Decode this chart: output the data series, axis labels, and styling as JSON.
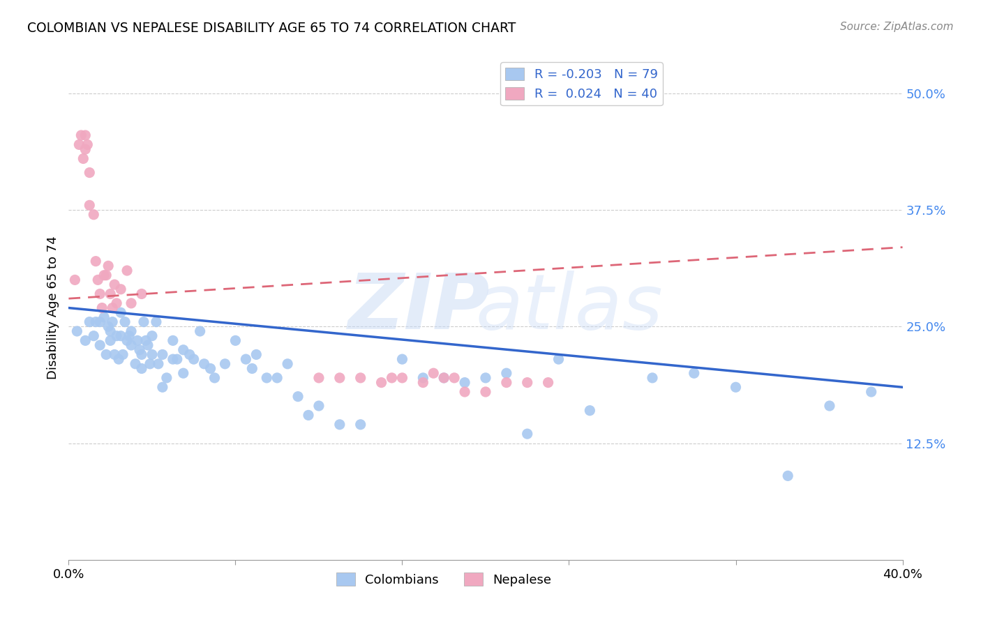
{
  "title": "COLOMBIAN VS NEPALESE DISABILITY AGE 65 TO 74 CORRELATION CHART",
  "source": "Source: ZipAtlas.com",
  "ylabel": "Disability Age 65 to 74",
  "xlim": [
    0.0,
    0.4
  ],
  "ylim": [
    0.0,
    0.54
  ],
  "yticks": [
    0.125,
    0.25,
    0.375,
    0.5
  ],
  "ytick_labels": [
    "12.5%",
    "25.0%",
    "37.5%",
    "50.0%"
  ],
  "xticks": [
    0.0,
    0.08,
    0.16,
    0.24,
    0.32,
    0.4
  ],
  "xtick_labels": [
    "0.0%",
    "",
    "",
    "",
    "",
    "40.0%"
  ],
  "colombian_color": "#a8c8f0",
  "nepalese_color": "#f0a8c0",
  "colombian_line_color": "#3366cc",
  "nepalese_line_color": "#dd6677",
  "R_colombian": -0.203,
  "N_colombian": 79,
  "R_nepalese": 0.024,
  "N_nepalese": 40,
  "col_trend_x": [
    0.0,
    0.4
  ],
  "col_trend_y": [
    0.27,
    0.185
  ],
  "nep_trend_x": [
    0.0,
    0.4
  ],
  "nep_trend_y": [
    0.28,
    0.335
  ],
  "colombian_x": [
    0.004,
    0.008,
    0.01,
    0.012,
    0.013,
    0.015,
    0.015,
    0.017,
    0.018,
    0.019,
    0.02,
    0.02,
    0.021,
    0.022,
    0.023,
    0.024,
    0.025,
    0.025,
    0.026,
    0.027,
    0.028,
    0.029,
    0.03,
    0.03,
    0.032,
    0.033,
    0.034,
    0.035,
    0.035,
    0.036,
    0.037,
    0.038,
    0.039,
    0.04,
    0.04,
    0.042,
    0.043,
    0.045,
    0.045,
    0.047,
    0.05,
    0.05,
    0.052,
    0.055,
    0.055,
    0.058,
    0.06,
    0.063,
    0.065,
    0.068,
    0.07,
    0.075,
    0.08,
    0.085,
    0.088,
    0.09,
    0.095,
    0.1,
    0.105,
    0.11,
    0.115,
    0.12,
    0.13,
    0.14,
    0.16,
    0.17,
    0.18,
    0.19,
    0.2,
    0.21,
    0.22,
    0.235,
    0.25,
    0.28,
    0.3,
    0.32,
    0.345,
    0.365,
    0.385
  ],
  "colombian_y": [
    0.245,
    0.235,
    0.255,
    0.24,
    0.255,
    0.255,
    0.23,
    0.26,
    0.22,
    0.25,
    0.235,
    0.245,
    0.255,
    0.22,
    0.24,
    0.215,
    0.24,
    0.265,
    0.22,
    0.255,
    0.235,
    0.24,
    0.23,
    0.245,
    0.21,
    0.235,
    0.225,
    0.205,
    0.22,
    0.255,
    0.235,
    0.23,
    0.21,
    0.22,
    0.24,
    0.255,
    0.21,
    0.185,
    0.22,
    0.195,
    0.215,
    0.235,
    0.215,
    0.2,
    0.225,
    0.22,
    0.215,
    0.245,
    0.21,
    0.205,
    0.195,
    0.21,
    0.235,
    0.215,
    0.205,
    0.22,
    0.195,
    0.195,
    0.21,
    0.175,
    0.155,
    0.165,
    0.145,
    0.145,
    0.215,
    0.195,
    0.195,
    0.19,
    0.195,
    0.2,
    0.135,
    0.215,
    0.16,
    0.195,
    0.2,
    0.185,
    0.09,
    0.165,
    0.18
  ],
  "nepalese_x": [
    0.003,
    0.005,
    0.006,
    0.007,
    0.008,
    0.008,
    0.009,
    0.01,
    0.01,
    0.012,
    0.013,
    0.014,
    0.015,
    0.016,
    0.017,
    0.018,
    0.019,
    0.02,
    0.021,
    0.022,
    0.023,
    0.025,
    0.028,
    0.03,
    0.035,
    0.12,
    0.13,
    0.14,
    0.15,
    0.155,
    0.16,
    0.17,
    0.175,
    0.18,
    0.185,
    0.19,
    0.2,
    0.21,
    0.22,
    0.23
  ],
  "nepalese_y": [
    0.3,
    0.445,
    0.455,
    0.43,
    0.44,
    0.455,
    0.445,
    0.415,
    0.38,
    0.37,
    0.32,
    0.3,
    0.285,
    0.27,
    0.305,
    0.305,
    0.315,
    0.285,
    0.27,
    0.295,
    0.275,
    0.29,
    0.31,
    0.275,
    0.285,
    0.195,
    0.195,
    0.195,
    0.19,
    0.195,
    0.195,
    0.19,
    0.2,
    0.195,
    0.195,
    0.18,
    0.18,
    0.19,
    0.19,
    0.19
  ]
}
